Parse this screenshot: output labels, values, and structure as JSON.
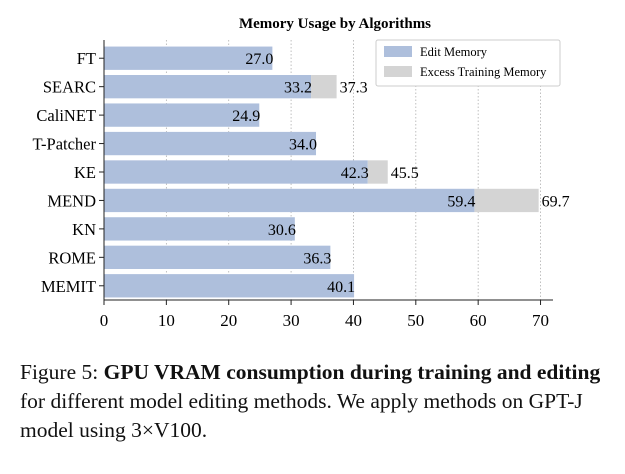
{
  "chart_data": {
    "type": "bar",
    "orientation": "horizontal",
    "stacked": true,
    "title": "Memory Usage by Algorithms",
    "categories": [
      "FT",
      "SEARC",
      "CaliNET",
      "T-Patcher",
      "KE",
      "MEND",
      "KN",
      "ROME",
      "MEMIT"
    ],
    "series": [
      {
        "name": "Edit Memory",
        "color": "#aebfdc",
        "values": [
          27.0,
          33.2,
          24.9,
          34.0,
          42.3,
          59.4,
          30.6,
          36.3,
          40.1
        ],
        "labels": [
          "27.0",
          "33.2",
          "24.9",
          "34.0",
          "42.3",
          "59.4",
          "30.6",
          "36.3",
          "40.1"
        ]
      },
      {
        "name": "Excess Training Memory",
        "color": "#d4d4d4",
        "totals": [
          null,
          37.3,
          null,
          null,
          45.5,
          69.7,
          null,
          null,
          null
        ],
        "labels": [
          "",
          "37.3",
          "",
          "",
          "45.5",
          "69.7",
          "",
          "",
          ""
        ]
      }
    ],
    "xlim": [
      0,
      72
    ],
    "xticks": [
      0,
      10,
      20,
      30,
      40,
      50,
      60,
      70
    ],
    "xtick_labels": [
      "0",
      "10",
      "20",
      "30",
      "40",
      "50",
      "60",
      "70"
    ],
    "grid": "vertical dotted",
    "legend": "top-right"
  },
  "caption": {
    "label": "Figure 5:",
    "bold": "GPU VRAM consumption during training and editing",
    "rest": "for different model editing methods. We apply methods on GPT-J model using 3×V100."
  }
}
